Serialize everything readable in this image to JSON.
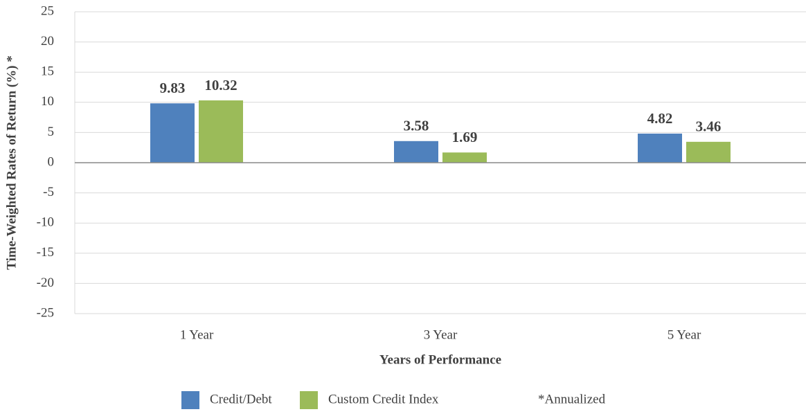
{
  "chart_data": {
    "type": "bar",
    "x_label": "Years of Performance",
    "y_label": "Time-Weighted Rates of Return (%) *",
    "annotation": "*Annualized",
    "categories": [
      "1 Year",
      "3 Year",
      "5 Year"
    ],
    "series": [
      {
        "name": "Credit/Debt",
        "color": "#4f81bd",
        "values": [
          9.83,
          3.58,
          4.82
        ]
      },
      {
        "name": "Custom Credit Index",
        "color": "#9bbb59",
        "values": [
          10.32,
          1.69,
          3.46
        ]
      }
    ],
    "ylim": [
      -25,
      25
    ],
    "yticks": [
      -25,
      -20,
      -15,
      -10,
      -5,
      0,
      5,
      10,
      15,
      20,
      25
    ],
    "grid": true,
    "legend": "bottom"
  }
}
